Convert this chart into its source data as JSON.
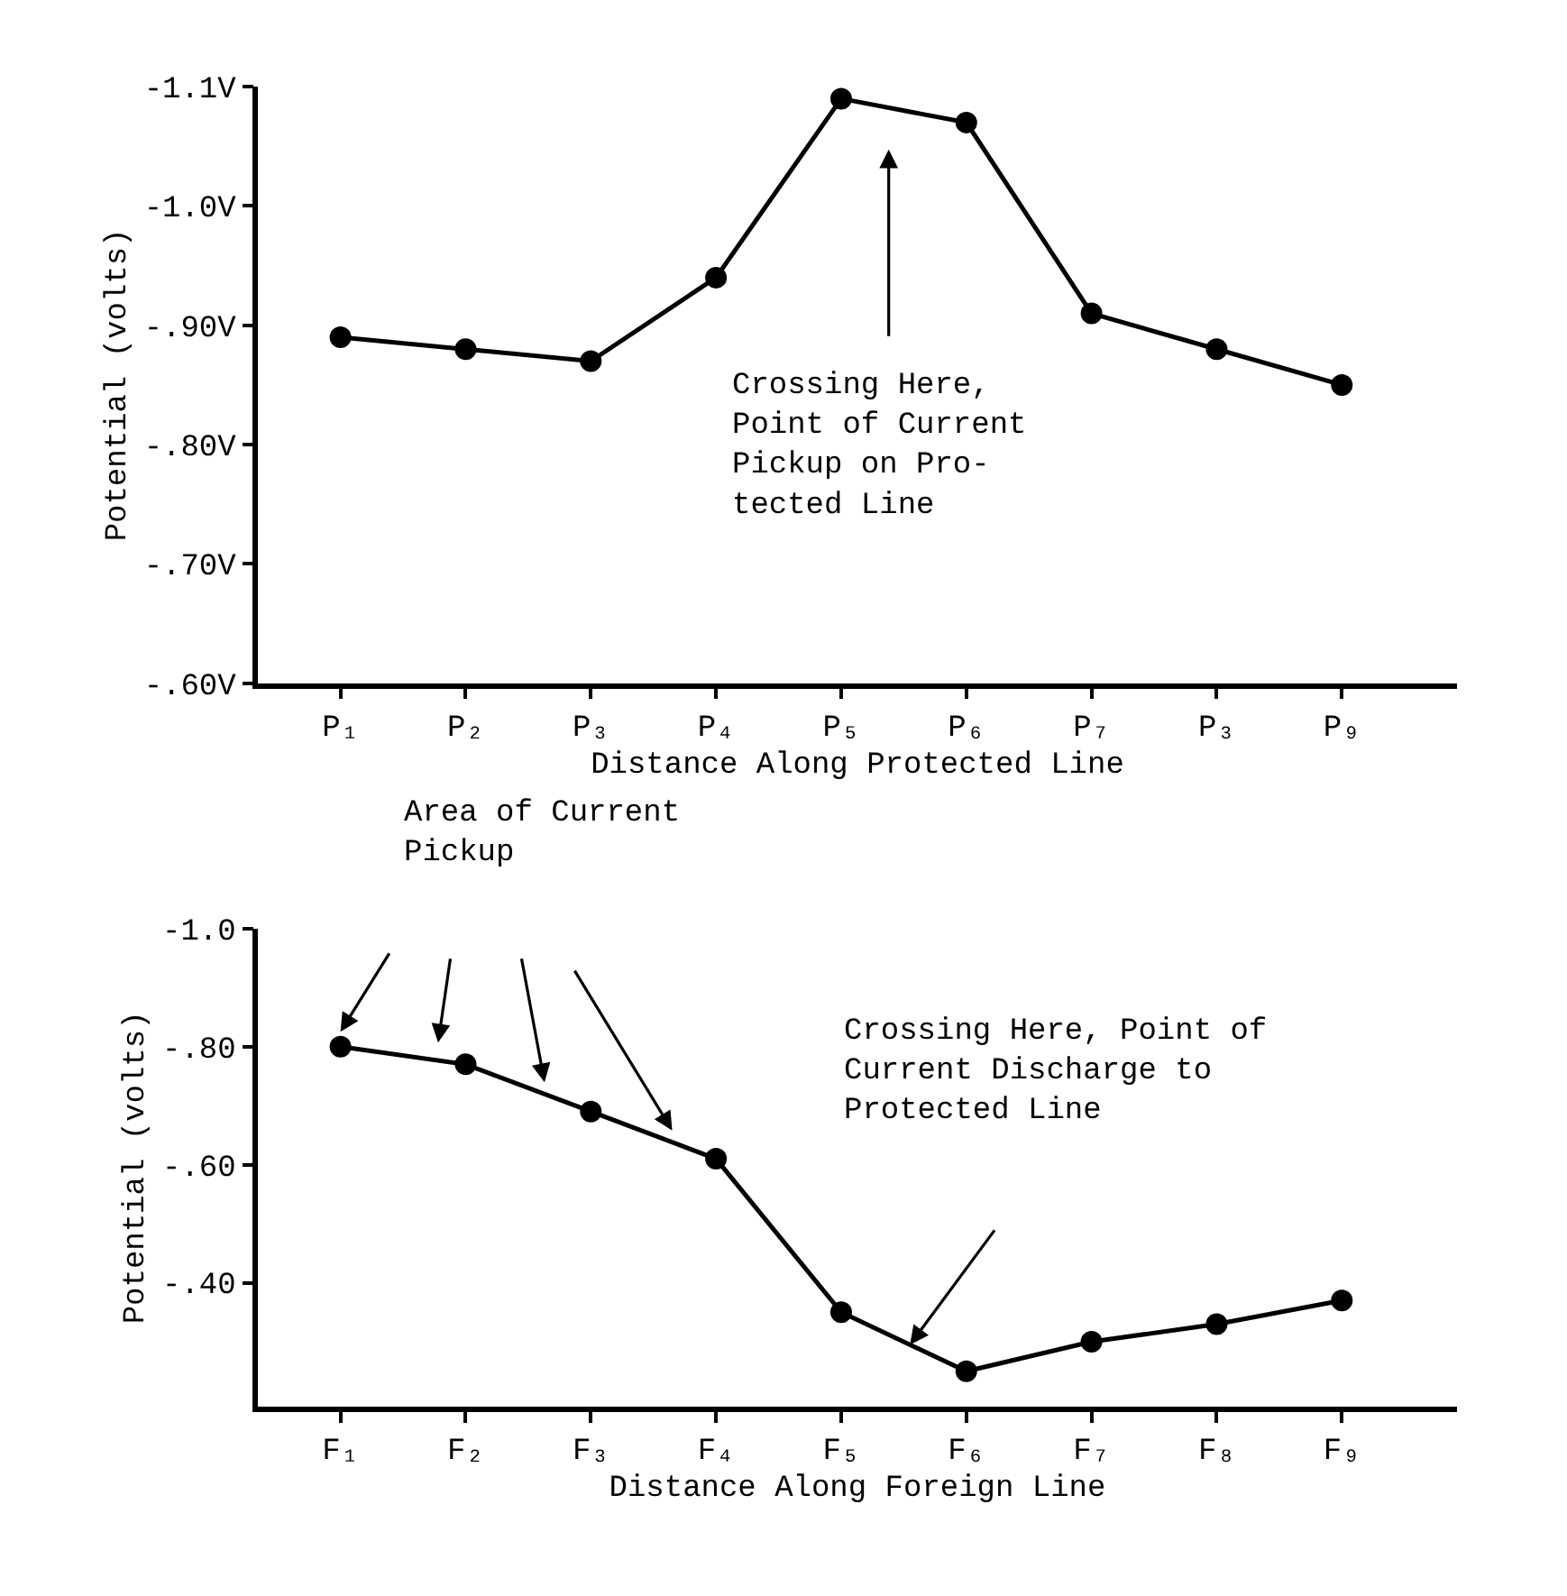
{
  "chart_data": [
    {
      "type": "line",
      "xlabel": "Distance Along Protected Line",
      "ylabel": "Potential (volts)",
      "categories": [
        "P₁",
        "P₂",
        "P₃",
        "P₄",
        "P₅",
        "P₆",
        "P₇",
        "P₃",
        "P₉"
      ],
      "series": [
        {
          "color": "#000000",
          "values": [
            -0.89,
            -0.88,
            -0.87,
            -0.94,
            -1.09,
            -1.07,
            -0.91,
            -0.88,
            -0.85
          ]
        }
      ],
      "ylim": [
        -0.6,
        -1.1
      ],
      "yticks": [
        {
          "value": -0.6,
          "label": "-.60V"
        },
        {
          "value": -0.7,
          "label": "-.70V"
        },
        {
          "value": -0.8,
          "label": "-.80V"
        },
        {
          "value": -0.9,
          "label": "-.90V"
        },
        {
          "value": -1.0,
          "label": "-1.0V"
        },
        {
          "value": -1.1,
          "label": "-1.1V"
        }
      ],
      "marker": "circle",
      "line_style": "solid",
      "annotations": [
        "Crossing Here,\nPoint of Current\nPickup on Pro-\ntected Line"
      ]
    },
    {
      "type": "line",
      "xlabel": "Distance Along Foreign Line",
      "ylabel": "Potential (volts)",
      "categories": [
        "F₁",
        "F₂",
        "F₃",
        "F₄",
        "F₅",
        "F₆",
        "F₇",
        "F₈",
        "F₉"
      ],
      "series": [
        {
          "color": "#000000",
          "values": [
            -0.8,
            -0.77,
            -0.69,
            -0.61,
            -0.35,
            -0.25,
            -0.3,
            -0.33,
            -0.37
          ]
        }
      ],
      "ylim": [
        -0.19,
        -1.0
      ],
      "yticks": [
        {
          "value": -0.4,
          "label": "-.40"
        },
        {
          "value": -0.6,
          "label": "-.60"
        },
        {
          "value": -0.8,
          "label": "-.80"
        },
        {
          "value": -1.0,
          "label": "-1.0"
        }
      ],
      "marker": "circle",
      "line_style": "solid",
      "annotations": [
        "Area of Current\nPickup",
        "Crossing Here, Point of\nCurrent Discharge to\nProtected Line"
      ]
    }
  ]
}
